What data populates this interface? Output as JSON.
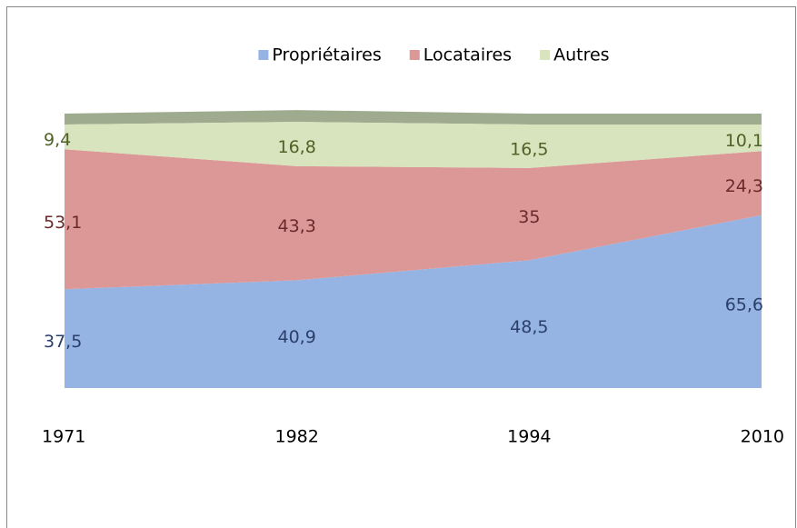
{
  "chart_data": {
    "type": "stacked-area",
    "categories": [
      "1971",
      "1982",
      "1994",
      "2010"
    ],
    "series": [
      {
        "name": "Propriétaires",
        "color": "#95b3e3",
        "label_color": "#2b3f6b",
        "values": [
          37.5,
          40.9,
          48.5,
          65.6
        ],
        "value_labels": [
          "37,5",
          "40,9",
          "48,5",
          "65,6"
        ]
      },
      {
        "name": "Locataires",
        "color": "#dc9897",
        "label_color": "#6b2a2a",
        "values": [
          53.1,
          43.3,
          35,
          24.3
        ],
        "value_labels": [
          "53,1",
          "43,3",
          "35",
          "24,3"
        ]
      },
      {
        "name": "Autres",
        "color": "#d8e4bd",
        "label_color": "#4f6228",
        "values": [
          9.4,
          16.8,
          16.5,
          10.1
        ],
        "value_labels": [
          "9,4",
          "16,8",
          "16,5",
          "10,1"
        ]
      }
    ],
    "ylim": [
      0,
      100
    ],
    "legend": "top"
  }
}
